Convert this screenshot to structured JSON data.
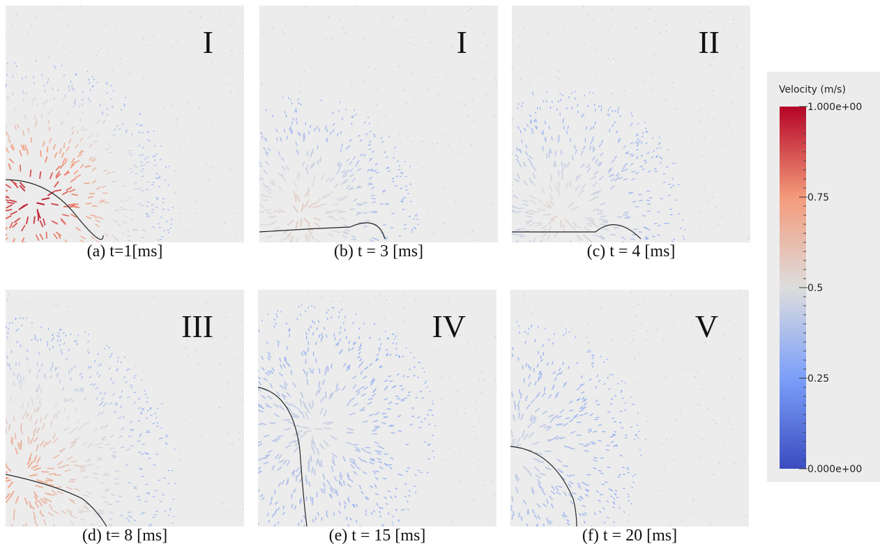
{
  "panels": [
    {
      "label": "I",
      "caption": "(a) t=1[ms]"
    },
    {
      "label": "I",
      "caption": "(b) t = 3 [ms]"
    },
    {
      "label": "II",
      "caption": "(c) t = 4 [ms]"
    },
    {
      "label": "III",
      "caption": "(d) t= 8 [ms]"
    },
    {
      "label": "IV",
      "caption": "(e) t = 15 [ms]"
    },
    {
      "label": "V",
      "caption": "(f) t = 20 [ms]"
    }
  ],
  "colorbar": {
    "title": "Velocity (m/s)",
    "lim": [
      0,
      1
    ],
    "ticks": [
      {
        "value": 1,
        "label": "1.000e+00"
      },
      0.75,
      0.5,
      0.25,
      {
        "value": 0,
        "label": "0.000e+00"
      }
    ]
  }
}
